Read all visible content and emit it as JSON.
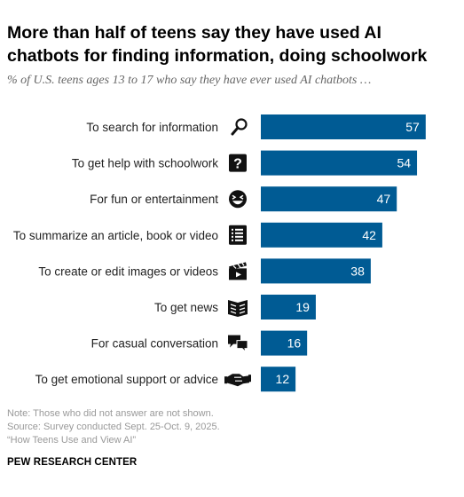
{
  "chart_data": {
    "type": "bar",
    "orientation": "horizontal",
    "title": "More than half of teens say they have used AI chatbots for finding information, doing schoolwork",
    "subtitle": "% of U.S. teens ages 13 to 17 who say they have ever used AI chatbots …",
    "categories": [
      "To search for information",
      "To get help with schoolwork",
      "For fun or entertainment",
      "To summarize an article, book or video",
      "To create or edit images or videos",
      "To get news",
      "For casual conversation",
      "To get emotional support or advice"
    ],
    "values": [
      57,
      54,
      47,
      42,
      38,
      19,
      16,
      12
    ],
    "icons": [
      "magnifier-icon",
      "question-mark-icon",
      "laughing-face-icon",
      "list-icon",
      "clapperboard-icon",
      "newspaper-icon",
      "speech-bubbles-icon",
      "handshake-icon"
    ],
    "bar_color": "#005b94",
    "value_label_color": "#ffffff",
    "xlim": [
      0,
      60
    ],
    "grid": false,
    "legend": "none"
  },
  "notes": {
    "note": "Note: Those who did not answer are not shown.",
    "source": "Source: Survey conducted Sept. 25-Oct. 9, 2025.",
    "report": "“How Teens Use and View AI”"
  },
  "brand": "PEW RESEARCH CENTER"
}
